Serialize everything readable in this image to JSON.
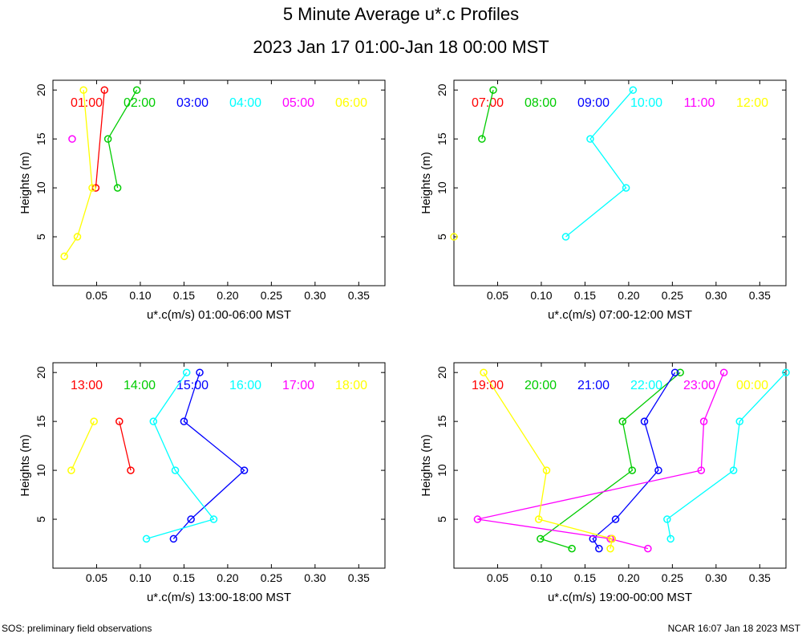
{
  "title": "5 Minute Average u*.c Profiles",
  "subtitle": "2023 Jan 17 01:00-Jan 18 00:00 MST",
  "footer_left": "SOS: preliminary field observations",
  "footer_right": "NCAR 16:07 Jan 18 2023 MST",
  "chart_data": [
    {
      "type": "line",
      "xlabel": "u*.c(m/s) 01:00-06:00 MST",
      "ylabel": "Heights (m)",
      "xlim": [
        0.0,
        0.38
      ],
      "ylim": [
        0,
        21
      ],
      "xticks": [
        "0.05",
        "0.10",
        "0.15",
        "0.20",
        "0.25",
        "0.30",
        "0.35"
      ],
      "yticks": [
        "5",
        "10",
        "15",
        "20"
      ],
      "series": [
        {
          "name": "01:00",
          "color": "#ff0000",
          "points": [
            [
              0.049,
              10
            ],
            [
              0.059,
              20
            ]
          ]
        },
        {
          "name": "02:00",
          "color": "#00cc00",
          "points": [
            [
              0.074,
              10
            ],
            [
              0.063,
              15
            ],
            [
              0.096,
              20
            ]
          ]
        },
        {
          "name": "03:00",
          "color": "#0000ff",
          "points": []
        },
        {
          "name": "04:00",
          "color": "#00ffff",
          "points": []
        },
        {
          "name": "05:00",
          "color": "#ff00ff",
          "points": [
            [
              0.022,
              15
            ]
          ]
        },
        {
          "name": "06:00",
          "color": "#ffff00",
          "points": [
            [
              0.013,
              3
            ],
            [
              0.028,
              5
            ],
            [
              0.045,
              10
            ],
            [
              0.035,
              20
            ]
          ]
        }
      ]
    },
    {
      "type": "line",
      "xlabel": "u*.c(m/s) 07:00-12:00 MST",
      "ylabel": "Heights (m)",
      "xlim": [
        0.0,
        0.38
      ],
      "ylim": [
        0,
        21
      ],
      "xticks": [
        "0.05",
        "0.10",
        "0.15",
        "0.20",
        "0.25",
        "0.30",
        "0.35"
      ],
      "yticks": [
        "5",
        "10",
        "15",
        "20"
      ],
      "series": [
        {
          "name": "07:00",
          "color": "#ff0000",
          "points": []
        },
        {
          "name": "08:00",
          "color": "#00cc00",
          "points": [
            [
              0.032,
              15
            ],
            [
              0.045,
              20
            ]
          ]
        },
        {
          "name": "09:00",
          "color": "#0000ff",
          "points": []
        },
        {
          "name": "10:00",
          "color": "#00ffff",
          "points": [
            [
              0.128,
              5
            ],
            [
              0.197,
              10
            ],
            [
              0.156,
              15
            ],
            [
              0.205,
              20
            ]
          ]
        },
        {
          "name": "11:00",
          "color": "#ff00ff",
          "points": []
        },
        {
          "name": "12:00",
          "color": "#ffff00",
          "points": [
            [
              0.0,
              5
            ]
          ]
        }
      ]
    },
    {
      "type": "line",
      "xlabel": "u*.c(m/s) 13:00-18:00 MST",
      "ylabel": "Heights (m)",
      "xlim": [
        0.0,
        0.38
      ],
      "ylim": [
        0,
        21
      ],
      "xticks": [
        "0.05",
        "0.10",
        "0.15",
        "0.20",
        "0.25",
        "0.30",
        "0.35"
      ],
      "yticks": [
        "5",
        "10",
        "15",
        "20"
      ],
      "series": [
        {
          "name": "13:00",
          "color": "#ff0000",
          "points": [
            [
              0.089,
              10
            ],
            [
              0.076,
              15
            ]
          ]
        },
        {
          "name": "14:00",
          "color": "#00cc00",
          "points": []
        },
        {
          "name": "15:00",
          "color": "#0000ff",
          "points": [
            [
              0.138,
              3
            ],
            [
              0.158,
              5
            ],
            [
              0.219,
              10
            ],
            [
              0.15,
              15
            ],
            [
              0.168,
              20
            ]
          ]
        },
        {
          "name": "16:00",
          "color": "#00ffff",
          "points": [
            [
              0.107,
              3
            ],
            [
              0.184,
              5
            ],
            [
              0.14,
              10
            ],
            [
              0.115,
              15
            ],
            [
              0.153,
              20
            ]
          ]
        },
        {
          "name": "17:00",
          "color": "#ff00ff",
          "points": []
        },
        {
          "name": "18:00",
          "color": "#ffff00",
          "points": [
            [
              0.021,
              10
            ],
            [
              0.047,
              15
            ]
          ]
        }
      ]
    },
    {
      "type": "line",
      "xlabel": "u*.c(m/s) 19:00-00:00 MST",
      "ylabel": "Heights (m)",
      "xlim": [
        0.0,
        0.38
      ],
      "ylim": [
        0,
        21
      ],
      "xticks": [
        "0.05",
        "0.10",
        "0.15",
        "0.20",
        "0.25",
        "0.30",
        "0.35"
      ],
      "yticks": [
        "5",
        "10",
        "15",
        "20"
      ],
      "series": [
        {
          "name": "19:00",
          "color": "#ff0000",
          "points": [
            [
              0.181,
              3
            ]
          ]
        },
        {
          "name": "20:00",
          "color": "#00cc00",
          "points": [
            [
              0.135,
              2
            ],
            [
              0.099,
              3
            ],
            [
              0.204,
              10
            ],
            [
              0.193,
              15
            ],
            [
              0.259,
              20
            ]
          ]
        },
        {
          "name": "21:00",
          "color": "#0000ff",
          "points": [
            [
              0.166,
              2
            ],
            [
              0.159,
              3
            ],
            [
              0.185,
              5
            ],
            [
              0.234,
              10
            ],
            [
              0.218,
              15
            ],
            [
              0.253,
              20
            ]
          ]
        },
        {
          "name": "22:00",
          "color": "#00ffff",
          "points": [
            [
              0.248,
              3
            ],
            [
              0.244,
              5
            ],
            [
              0.32,
              10
            ],
            [
              0.327,
              15
            ],
            [
              0.38,
              20
            ]
          ]
        },
        {
          "name": "23:00",
          "color": "#ff00ff",
          "points": [
            [
              0.222,
              2
            ],
            [
              0.179,
              3
            ],
            [
              0.027,
              5
            ],
            [
              0.283,
              10
            ],
            [
              0.286,
              15
            ],
            [
              0.309,
              20
            ]
          ]
        },
        {
          "name": "00:00",
          "color": "#ffff00",
          "points": [
            [
              0.179,
              2
            ],
            [
              0.181,
              3
            ],
            [
              0.097,
              5
            ],
            [
              0.106,
              10
            ],
            [
              0.034,
              20
            ]
          ]
        }
      ]
    }
  ]
}
